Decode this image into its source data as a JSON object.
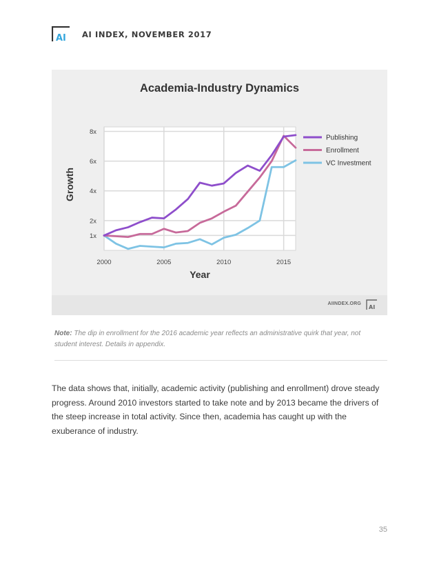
{
  "header": {
    "title": "AI INDEX, NOVEMBER 2017",
    "logo_text": "AI"
  },
  "chart_data": {
    "type": "line",
    "title": "Academia-Industry Dynamics",
    "xlabel": "Year",
    "ylabel": "Growth",
    "xlim": [
      2000,
      2016
    ],
    "ylim": [
      0,
      8.3
    ],
    "x_ticks": [
      2000,
      2005,
      2010,
      2015
    ],
    "x_tick_labels": [
      "2000",
      "2005",
      "2010",
      "2015"
    ],
    "y_ticks": [
      1,
      2,
      4,
      6,
      8
    ],
    "y_tick_labels": [
      "1x",
      "2x",
      "4x",
      "6x",
      "8x"
    ],
    "grid": true,
    "legend_position": "right",
    "x": [
      2000,
      2001,
      2002,
      2003,
      2004,
      2005,
      2006,
      2007,
      2008,
      2009,
      2010,
      2011,
      2012,
      2013,
      2014,
      2015,
      2016
    ],
    "series": [
      {
        "name": "Publishing",
        "color": "#8e4ecb",
        "values": [
          1.0,
          1.35,
          1.55,
          1.9,
          2.2,
          2.15,
          2.75,
          3.45,
          4.55,
          4.35,
          4.5,
          5.2,
          5.7,
          5.35,
          6.4,
          7.65,
          7.75
        ]
      },
      {
        "name": "Enrollment",
        "color": "#c76a9a",
        "values": [
          1.0,
          0.95,
          0.9,
          1.1,
          1.1,
          1.45,
          1.2,
          1.3,
          1.85,
          2.15,
          2.6,
          3.0,
          3.95,
          4.9,
          6.0,
          7.7,
          6.9
        ]
      },
      {
        "name": "VC Investment",
        "color": "#7ec3e4",
        "values": [
          1.0,
          0.45,
          0.1,
          0.3,
          0.25,
          0.2,
          0.45,
          0.5,
          0.75,
          0.4,
          0.85,
          1.05,
          1.5,
          2.0,
          5.6,
          5.6,
          6.05
        ]
      }
    ]
  },
  "chart_footer": {
    "site": "AIINDEX.ORG",
    "logo_text": "AI"
  },
  "note": {
    "label": "Note:",
    "text": "The dip in enrollment for the 2016 academic year reflects an administrative quirk that year, not student interest. Details in appendix."
  },
  "body_text": "The data shows that, initially, academic activity (publishing and enrollment) drove steady progress. Around 2010 investors started to take note and by 2013 became the drivers of the steep increase in total activity. Since then, academia has caught up with the exuberance of industry.",
  "page_number": "35",
  "colors": {
    "accent_blue": "#35a7dd",
    "logo_dark": "#333333",
    "panel_bg": "#efefef"
  }
}
